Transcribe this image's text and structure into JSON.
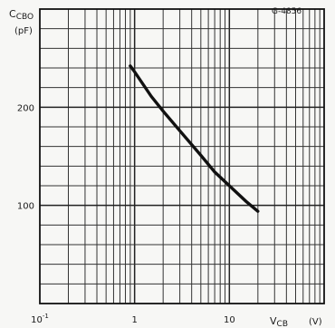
{
  "chart_data": {
    "type": "line",
    "figure_code": "G-4856",
    "ylabel_main": "C",
    "ylabel_sub": "CBO",
    "ylabel_unit": "(pF)",
    "xlabel_main": "V",
    "xlabel_sub": "CB",
    "xlabel_unit": "(V)",
    "x_scale": "log",
    "xlim": [
      0.1,
      100
    ],
    "ylim": [
      0,
      300
    ],
    "grid": true,
    "x_tick_labels": [
      {
        "value": 0.1,
        "base": "10",
        "exp": "-1"
      },
      {
        "value": 1,
        "base": "1",
        "exp": ""
      },
      {
        "value": 10,
        "base": "10",
        "exp": ""
      }
    ],
    "y_tick_labels": [
      {
        "value": 100,
        "label": "100"
      },
      {
        "value": 200,
        "label": "200"
      }
    ],
    "series": [
      {
        "x": [
          0.9,
          1.0,
          1.5,
          2.0,
          3.0,
          5.0,
          7.0,
          10.0,
          15.0,
          20.0
        ],
        "y": [
          242,
          236,
          211,
          196,
          176,
          151,
          134,
          120,
          104,
          94
        ]
      }
    ]
  }
}
